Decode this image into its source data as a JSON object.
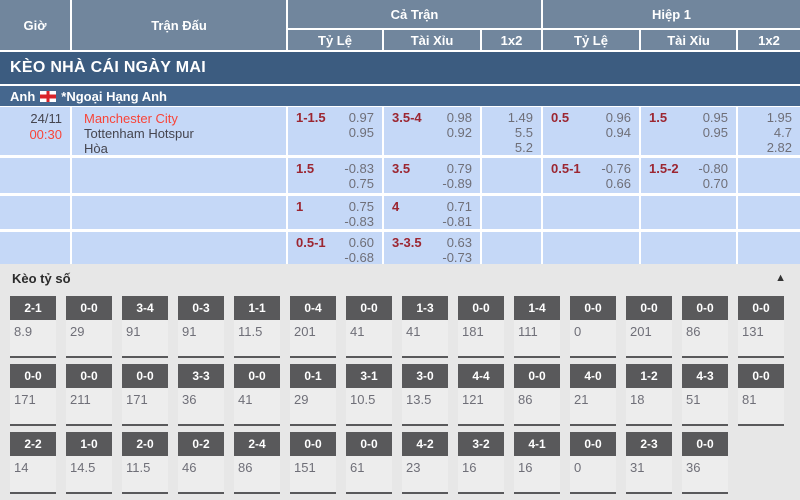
{
  "header": {
    "col_time": "Giờ",
    "col_match": "Trận Đấu",
    "col_full_time": "Cả Trận",
    "col_first_half": "Hiệp 1",
    "col_handicap": "Tỷ Lệ",
    "col_over_under": "Tài Xỉu",
    "col_1x2": "1x2",
    "col_handicap_h1": "Tỷ Lệ",
    "col_over_under_h1": "Tài Xỉu",
    "col_1x2_h1": "1x2"
  },
  "banner": {
    "title": "KÈO NHÀ CÁI NGÀY MAI"
  },
  "league": {
    "country": "Anh",
    "name": "*Ngoại Hạng Anh",
    "flag": "england-flag"
  },
  "match": {
    "date": "24/11",
    "time": "00:30",
    "home_team": "Manchester City",
    "away_team": "Tottenham Hotspur",
    "draw_label": "Hòa"
  },
  "odds_rows": [
    {
      "ft_hcp": "1-1.5",
      "ft_hcp_o1": "0.97",
      "ft_hcp_o2": "0.95",
      "ft_ou": "3.5-4",
      "ft_ou_o1": "0.98",
      "ft_ou_o2": "0.92",
      "ft_1x2_1": "1.49",
      "ft_1x2_2": "5.5",
      "ft_1x2_3": "5.2",
      "h1_hcp": "0.5",
      "h1_hcp_o1": "0.96",
      "h1_hcp_o2": "0.94",
      "h1_ou": "1.5",
      "h1_ou_o1": "0.95",
      "h1_ou_o2": "0.95",
      "h1_1x2_1": "1.95",
      "h1_1x2_2": "4.7",
      "h1_1x2_3": "2.82"
    },
    {
      "ft_hcp": "1.5",
      "ft_hcp_o1": "-0.83",
      "ft_hcp_o2": "0.75",
      "ft_ou": "3.5",
      "ft_ou_o1": "0.79",
      "ft_ou_o2": "-0.89",
      "h1_hcp": "0.5-1",
      "h1_hcp_o1": "-0.76",
      "h1_hcp_o2": "0.66",
      "h1_ou": "1.5-2",
      "h1_ou_o1": "-0.80",
      "h1_ou_o2": "0.70"
    },
    {
      "ft_hcp": "1",
      "ft_hcp_o1": "0.75",
      "ft_hcp_o2": "-0.83",
      "ft_ou": "4",
      "ft_ou_o1": "0.71",
      "ft_ou_o2": "-0.81"
    },
    {
      "ft_hcp": "0.5-1",
      "ft_hcp_o1": "0.60",
      "ft_hcp_o2": "-0.68",
      "ft_ou": "3-3.5",
      "ft_ou_o1": "0.63",
      "ft_ou_o2": "-0.73"
    }
  ],
  "correct_score": {
    "title": "Kèo tỷ số",
    "collapse_arrow": "▲",
    "rows": [
      [
        [
          "2-1",
          "8.9"
        ],
        [
          "0-0",
          "29"
        ],
        [
          "3-4",
          "91"
        ],
        [
          "0-3",
          "91"
        ],
        [
          "1-1",
          "11.5"
        ],
        [
          "0-4",
          "201"
        ],
        [
          "0-0",
          "41"
        ],
        [
          "1-3",
          "41"
        ],
        [
          "0-0",
          "181"
        ],
        [
          "1-4",
          "111"
        ],
        [
          "0-0",
          "0"
        ],
        [
          "0-0",
          "201"
        ],
        [
          "0-0",
          "86"
        ],
        [
          "0-0",
          "131"
        ]
      ],
      [
        [
          "0-0",
          "171"
        ],
        [
          "0-0",
          "211"
        ],
        [
          "0-0",
          "171"
        ],
        [
          "3-3",
          "36"
        ],
        [
          "0-0",
          "41"
        ],
        [
          "0-1",
          "29"
        ],
        [
          "3-1",
          "10.5"
        ],
        [
          "3-0",
          "13.5"
        ],
        [
          "4-4",
          "121"
        ],
        [
          "0-0",
          "86"
        ],
        [
          "4-0",
          "21"
        ],
        [
          "1-2",
          "18"
        ],
        [
          "4-3",
          "51"
        ],
        [
          "0-0",
          "81"
        ]
      ],
      [
        [
          "2-2",
          "14"
        ],
        [
          "1-0",
          "14.5"
        ],
        [
          "2-0",
          "11.5"
        ],
        [
          "0-2",
          "46"
        ],
        [
          "2-4",
          "86"
        ],
        [
          "0-0",
          "151"
        ],
        [
          "0-0",
          "61"
        ],
        [
          "4-2",
          "23"
        ],
        [
          "3-2",
          "16"
        ],
        [
          "4-1",
          "16"
        ],
        [
          "0-0",
          "0"
        ],
        [
          "2-3",
          "31"
        ],
        [
          "0-0",
          "36"
        ]
      ]
    ]
  },
  "colors": {
    "header_bg": "#71869d",
    "banner_bg": "#3c5c80",
    "league_bg": "#45678e",
    "row_bg": "#c5d8f7",
    "handicap_text": "#9c2631",
    "odds_text": "#6f6f78",
    "highlight_red": "#f94438",
    "score_box_bg": "#59595b",
    "section_bg": "#e7e7e7"
  }
}
